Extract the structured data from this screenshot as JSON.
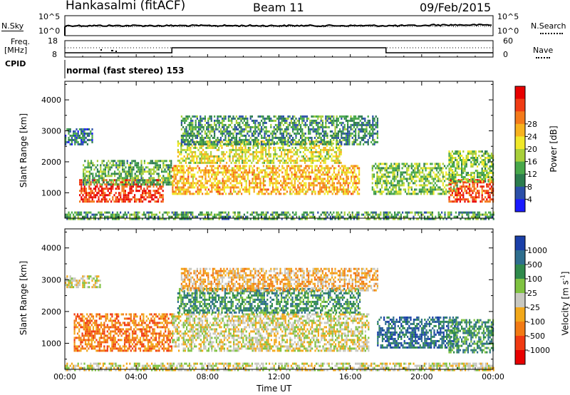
{
  "header": {
    "station": "Hankasalmi (fitACF)",
    "beam": "Beam 11",
    "date": "09/Feb/2015"
  },
  "noise_panel": {
    "left_label": "N.Sky",
    "right_label": "N.Search",
    "left_ticks": [
      "10^5",
      "10^0"
    ],
    "right_ticks": [
      "10^5",
      "10^0"
    ]
  },
  "freq_panel": {
    "left_label_1": "Freq.",
    "left_label_2": "[MHz]",
    "left_ticks": [
      "18",
      "8"
    ],
    "right_label": "Nave",
    "right_ticks": [
      "60",
      "0"
    ],
    "switch_times_hours": [
      6.0,
      18.0
    ]
  },
  "cpid": {
    "label": "CPID",
    "value": "normal (fast stereo) 153"
  },
  "chart_data": [
    {
      "type": "heatmap",
      "name": "power",
      "ylabel": "Slant Range [km]",
      "xlabel": "Time UT",
      "x_ticks": [
        "00:00",
        "04:00",
        "08:00",
        "12:00",
        "16:00",
        "20:00",
        "00:00"
      ],
      "x_range_hours": [
        0,
        24
      ],
      "y_ticks": [
        1000,
        2000,
        3000,
        4000
      ],
      "y_range_km": [
        180,
        4600
      ],
      "colorbar": {
        "label": "Power [dB]",
        "ticks": [
          "4",
          "8",
          "12",
          "16",
          "20",
          "24",
          "28"
        ],
        "range": [
          0,
          30
        ],
        "colors": [
          "#1a1aff",
          "#2b4fa8",
          "#2c7c4e",
          "#48a84a",
          "#a8cf3a",
          "#f0e82a",
          "#f7b21e",
          "#f47a1a",
          "#f03c14",
          "#e80000"
        ]
      },
      "regions": [
        {
          "t0": 0.8,
          "t1": 5.5,
          "r0": 750,
          "r1": 1450,
          "level": 27
        },
        {
          "t0": 1.0,
          "t1": 6.0,
          "r0": 1300,
          "r1": 2100,
          "level": 10
        },
        {
          "t0": 0.0,
          "t1": 1.5,
          "r0": 2600,
          "r1": 3100,
          "level": 6
        },
        {
          "t0": 6.0,
          "t1": 16.5,
          "r0": 1000,
          "r1": 1900,
          "level": 20
        },
        {
          "t0": 6.3,
          "t1": 15.5,
          "r0": 2000,
          "r1": 2700,
          "level": 16
        },
        {
          "t0": 6.5,
          "t1": 17.5,
          "r0": 2600,
          "r1": 3500,
          "level": 8
        },
        {
          "t0": 17.2,
          "t1": 22.0,
          "r0": 1000,
          "r1": 2000,
          "level": 12
        },
        {
          "t0": 21.5,
          "t1": 24.0,
          "r0": 750,
          "r1": 1500,
          "level": 26
        },
        {
          "t0": 21.5,
          "t1": 24.0,
          "r0": 1400,
          "r1": 2400,
          "level": 12
        },
        {
          "t0": 0.0,
          "t1": 24.0,
          "r0": 190,
          "r1": 420,
          "level": 9
        }
      ]
    },
    {
      "type": "heatmap",
      "name": "velocity",
      "ylabel": "Slant Range [km]",
      "xlabel": "Time UT",
      "x_ticks": [
        "00:00",
        "04:00",
        "08:00",
        "12:00",
        "16:00",
        "20:00",
        "00:00"
      ],
      "x_range_hours": [
        0,
        24
      ],
      "y_ticks": [
        1000,
        2000,
        3000,
        4000
      ],
      "y_range_km": [
        180,
        4600
      ],
      "colorbar": {
        "label": "Velocity [m s^-1]",
        "ticks": [
          "1000",
          "500",
          "100",
          "25",
          "-25",
          "-100",
          "-500",
          "-1000"
        ],
        "colors": [
          "#1a3fa8",
          "#2e6e8e",
          "#2f8a4c",
          "#7fc241",
          "#c8c8c0",
          "#f2a81a",
          "#f27a14",
          "#f03a12",
          "#e80000"
        ]
      },
      "regions": [
        {
          "t0": 0.5,
          "t1": 6.0,
          "r0": 800,
          "r1": 2000,
          "level": 6
        },
        {
          "t0": 6.0,
          "t1": 17.0,
          "r0": 800,
          "r1": 2000,
          "level": 4
        },
        {
          "t0": 6.3,
          "t1": 16.5,
          "r0": 2000,
          "r1": 2800,
          "level": 2
        },
        {
          "t0": 0.0,
          "t1": 2.0,
          "r0": 2800,
          "r1": 3200,
          "level": 4
        },
        {
          "t0": 6.5,
          "t1": 17.5,
          "r0": 2700,
          "r1": 3400,
          "level": 5
        },
        {
          "t0": 17.5,
          "t1": 22.0,
          "r0": 900,
          "r1": 1900,
          "level": 1
        },
        {
          "t0": 21.5,
          "t1": 24.0,
          "r0": 750,
          "r1": 1800,
          "level": 2
        },
        {
          "t0": 0.0,
          "t1": 24.0,
          "r0": 190,
          "r1": 420,
          "level": 4
        }
      ]
    }
  ]
}
